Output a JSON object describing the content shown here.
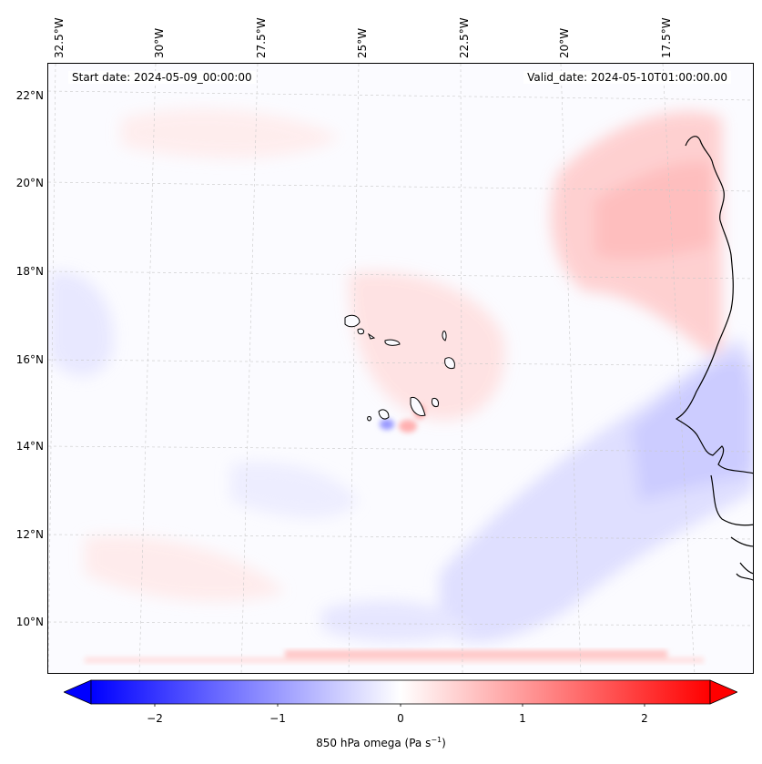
{
  "map": {
    "start_date": "Start date: 2024-05-09_00:00:00",
    "valid_date": "Valid_date: 2024-05-10T01:00:00.00",
    "lon_ticks": [
      "32.5°W",
      "30°W",
      "27.5°W",
      "25°W",
      "22.5°W",
      "20°W",
      "17.5°W"
    ],
    "lat_ticks": [
      "22°N",
      "20°N",
      "18°N",
      "16°N",
      "14°N",
      "12°N",
      "10°N"
    ]
  },
  "colorbar": {
    "ticks": [
      "−2",
      "−1",
      "0",
      "1",
      "2"
    ],
    "label_main": "850 hPa omega (Pa s",
    "label_exp": "−1",
    "label_close": ")",
    "colors": {
      "neg": "#0000ff",
      "zero": "#ffffff",
      "pos": "#ff0000"
    }
  }
}
